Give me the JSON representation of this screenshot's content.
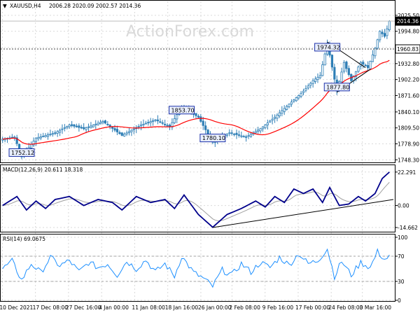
{
  "chart_data": [
    {
      "type": "candlestick",
      "panel": "price",
      "header": {
        "marker": "▼",
        "symbol": "XAUUSD,H4",
        "values": "2006.28 2020.09 2002.57 2014.36"
      },
      "watermark": "ActionForex.com",
      "y_ticks": [
        "2025.50",
        "1994.80",
        "1963.90",
        "1932.80",
        "1902.20",
        "1871.60",
        "1840.10",
        "1809.50",
        "1778.90",
        "1748.30"
      ],
      "tick_values": [
        2025.5,
        1994.8,
        1963.9,
        1932.8,
        1902.2,
        1871.6,
        1840.1,
        1809.5,
        1778.9,
        1748.3
      ],
      "ylim": [
        1746.0,
        2036.0
      ],
      "current_price": {
        "label": "2014.36",
        "value": 2014.36
      },
      "reference_level": {
        "label": "1960.83",
        "value": 1960.83
      },
      "annotations": [
        {
          "label": "1752.12",
          "value": 1752.12,
          "at_bar": 8
        },
        {
          "label": "1853.70",
          "value": 1853.7,
          "at_bar": 75
        },
        {
          "label": "1780.10",
          "value": 1780.1,
          "at_bar": 88
        },
        {
          "label": "1974.32",
          "value": 1974.32,
          "at_bar": 136
        },
        {
          "label": "1877.80",
          "value": 1877.8,
          "at_bar": 140
        }
      ],
      "series": [
        {
          "name": "",
          "kind": "candles",
          "color_up": "#2f7fb6",
          "color_down": "#2f7fb6"
        },
        {
          "name": "",
          "kind": "moving average",
          "color": "#ff0000"
        }
      ],
      "trendlines": [
        {
          "from": {
            "bar": 136,
            "value": 1974.32
          },
          "to": {
            "bar": 152,
            "value": 1925.0
          }
        },
        {
          "from": {
            "bar": 140,
            "value": 1877.8
          },
          "to": {
            "bar": 154,
            "value": 1922.0
          }
        }
      ],
      "key_points": [
        {
          "bar": 0,
          "value": 1788
        },
        {
          "bar": 5,
          "value": 1792
        },
        {
          "bar": 8,
          "value": 1754
        },
        {
          "bar": 14,
          "value": 1790
        },
        {
          "bar": 22,
          "value": 1800
        },
        {
          "bar": 28,
          "value": 1815
        },
        {
          "bar": 34,
          "value": 1808
        },
        {
          "bar": 42,
          "value": 1822
        },
        {
          "bar": 50,
          "value": 1795
        },
        {
          "bar": 58,
          "value": 1815
        },
        {
          "bar": 64,
          "value": 1825
        },
        {
          "bar": 70,
          "value": 1812
        },
        {
          "bar": 75,
          "value": 1850
        },
        {
          "bar": 82,
          "value": 1830
        },
        {
          "bar": 88,
          "value": 1782
        },
        {
          "bar": 95,
          "value": 1800
        },
        {
          "bar": 102,
          "value": 1792
        },
        {
          "bar": 108,
          "value": 1808
        },
        {
          "bar": 114,
          "value": 1830
        },
        {
          "bar": 120,
          "value": 1855
        },
        {
          "bar": 126,
          "value": 1880
        },
        {
          "bar": 130,
          "value": 1900
        },
        {
          "bar": 133,
          "value": 1910
        },
        {
          "bar": 136,
          "value": 1972
        },
        {
          "bar": 140,
          "value": 1880
        },
        {
          "bar": 143,
          "value": 1935
        },
        {
          "bar": 146,
          "value": 1900
        },
        {
          "bar": 150,
          "value": 1935
        },
        {
          "bar": 153,
          "value": 1925
        },
        {
          "bar": 156,
          "value": 1962
        },
        {
          "bar": 158,
          "value": 1995
        },
        {
          "bar": 160,
          "value": 1985
        },
        {
          "bar": 162,
          "value": 2014
        }
      ],
      "bars": 163
    },
    {
      "type": "line",
      "panel": "macd",
      "header": "MACD(12,26,9) 20.611 18.318",
      "y_ticks": [
        "22.291",
        "0.00",
        "-14.662"
      ],
      "tick_values": [
        22.291,
        0.0,
        -14.662
      ],
      "ylim": [
        -17.0,
        25.0
      ],
      "series": [
        {
          "name": "",
          "color": "#00008b"
        },
        {
          "name": "",
          "color": "#a0a0a0"
        }
      ],
      "key_points": [
        {
          "bar": 0,
          "value": 0
        },
        {
          "bar": 6,
          "value": 6
        },
        {
          "bar": 10,
          "value": -3
        },
        {
          "bar": 14,
          "value": 3
        },
        {
          "bar": 18,
          "value": -2
        },
        {
          "bar": 22,
          "value": 4
        },
        {
          "bar": 28,
          "value": 6
        },
        {
          "bar": 34,
          "value": 0
        },
        {
          "bar": 40,
          "value": 4
        },
        {
          "bar": 46,
          "value": 2
        },
        {
          "bar": 50,
          "value": -3
        },
        {
          "bar": 56,
          "value": 6
        },
        {
          "bar": 62,
          "value": 2
        },
        {
          "bar": 68,
          "value": 4
        },
        {
          "bar": 72,
          "value": -2
        },
        {
          "bar": 76,
          "value": 7
        },
        {
          "bar": 82,
          "value": -6
        },
        {
          "bar": 88,
          "value": -14.5
        },
        {
          "bar": 94,
          "value": -6
        },
        {
          "bar": 100,
          "value": -2
        },
        {
          "bar": 106,
          "value": 3
        },
        {
          "bar": 110,
          "value": -1
        },
        {
          "bar": 114,
          "value": 6
        },
        {
          "bar": 118,
          "value": 2
        },
        {
          "bar": 122,
          "value": 11
        },
        {
          "bar": 126,
          "value": 8
        },
        {
          "bar": 130,
          "value": 11
        },
        {
          "bar": 134,
          "value": 2
        },
        {
          "bar": 137,
          "value": 12
        },
        {
          "bar": 141,
          "value": 0
        },
        {
          "bar": 145,
          "value": 1
        },
        {
          "bar": 149,
          "value": 6
        },
        {
          "bar": 152,
          "value": 3
        },
        {
          "bar": 156,
          "value": 8
        },
        {
          "bar": 159,
          "value": 18
        },
        {
          "bar": 162,
          "value": 22.3
        }
      ],
      "trendline": {
        "from": {
          "bar": 88,
          "value": -14.662
        },
        "to": {
          "bar": 166,
          "value": 4.0
        }
      },
      "bars": 163
    },
    {
      "type": "line",
      "panel": "rsi",
      "header": "RSI(14) 69.0675",
      "y_ticks": [
        "100",
        "70",
        "30",
        "0"
      ],
      "tick_values": [
        100,
        70,
        30,
        0
      ],
      "ylim": [
        0,
        100
      ],
      "levels": [
        70,
        30
      ],
      "series": [
        {
          "name": "",
          "color": "#1e90ff"
        }
      ],
      "key_points": [
        {
          "bar": 0,
          "value": 50
        },
        {
          "bar": 4,
          "value": 62
        },
        {
          "bar": 8,
          "value": 32
        },
        {
          "bar": 12,
          "value": 58
        },
        {
          "bar": 16,
          "value": 44
        },
        {
          "bar": 20,
          "value": 68
        },
        {
          "bar": 24,
          "value": 55
        },
        {
          "bar": 28,
          "value": 63
        },
        {
          "bar": 32,
          "value": 45
        },
        {
          "bar": 36,
          "value": 60
        },
        {
          "bar": 40,
          "value": 52
        },
        {
          "bar": 44,
          "value": 58
        },
        {
          "bar": 48,
          "value": 40
        },
        {
          "bar": 52,
          "value": 62
        },
        {
          "bar": 56,
          "value": 50
        },
        {
          "bar": 60,
          "value": 64
        },
        {
          "bar": 64,
          "value": 45
        },
        {
          "bar": 68,
          "value": 58
        },
        {
          "bar": 72,
          "value": 38
        },
        {
          "bar": 75,
          "value": 70
        },
        {
          "bar": 80,
          "value": 44
        },
        {
          "bar": 84,
          "value": 35
        },
        {
          "bar": 88,
          "value": 22
        },
        {
          "bar": 92,
          "value": 48
        },
        {
          "bar": 96,
          "value": 40
        },
        {
          "bar": 100,
          "value": 58
        },
        {
          "bar": 104,
          "value": 45
        },
        {
          "bar": 108,
          "value": 60
        },
        {
          "bar": 112,
          "value": 52
        },
        {
          "bar": 116,
          "value": 68
        },
        {
          "bar": 120,
          "value": 56
        },
        {
          "bar": 124,
          "value": 74
        },
        {
          "bar": 128,
          "value": 58
        },
        {
          "bar": 132,
          "value": 63
        },
        {
          "bar": 136,
          "value": 82
        },
        {
          "bar": 139,
          "value": 38
        },
        {
          "bar": 142,
          "value": 62
        },
        {
          "bar": 146,
          "value": 40
        },
        {
          "bar": 150,
          "value": 60
        },
        {
          "bar": 154,
          "value": 52
        },
        {
          "bar": 157,
          "value": 77
        },
        {
          "bar": 160,
          "value": 65
        },
        {
          "bar": 162,
          "value": 69.07
        }
      ],
      "bars": 163
    }
  ],
  "x_axis": {
    "labels": [
      {
        "label": "10 Dec 2021",
        "bar": 0
      },
      {
        "label": "17 Dec 08:00",
        "bar": 17
      },
      {
        "label": "27 Dec 16:00",
        "bar": 34
      },
      {
        "label": "4 Jan 00:00",
        "bar": 51
      },
      {
        "label": "11 Jan 08:00",
        "bar": 68
      },
      {
        "label": "18 Jan 16:00",
        "bar": 85
      },
      {
        "label": "26 Jan 00:00",
        "bar": 102
      },
      {
        "label": "2 Feb 08:00",
        "bar": 118
      },
      {
        "label": "9 Feb 16:00",
        "bar": 135
      },
      {
        "label": "17 Feb 00:00",
        "bar": 152
      },
      {
        "label": "24 Feb 08:00",
        "bar": 169
      },
      {
        "label": "3 Mar 16:00",
        "bar": 185
      }
    ],
    "label_bar_count": 200
  },
  "colors": {
    "candles": "#2f7fb6",
    "moving_average": "#ff0000",
    "macd_line": "#00008b",
    "macd_signal": "#a0a0a0",
    "rsi_line": "#1e90ff",
    "frame": "#000000",
    "grid": "#d9d9d9",
    "label_fill": "#e8eefc",
    "label_stroke": "#1a2fa8",
    "price_tag": "#000000"
  }
}
